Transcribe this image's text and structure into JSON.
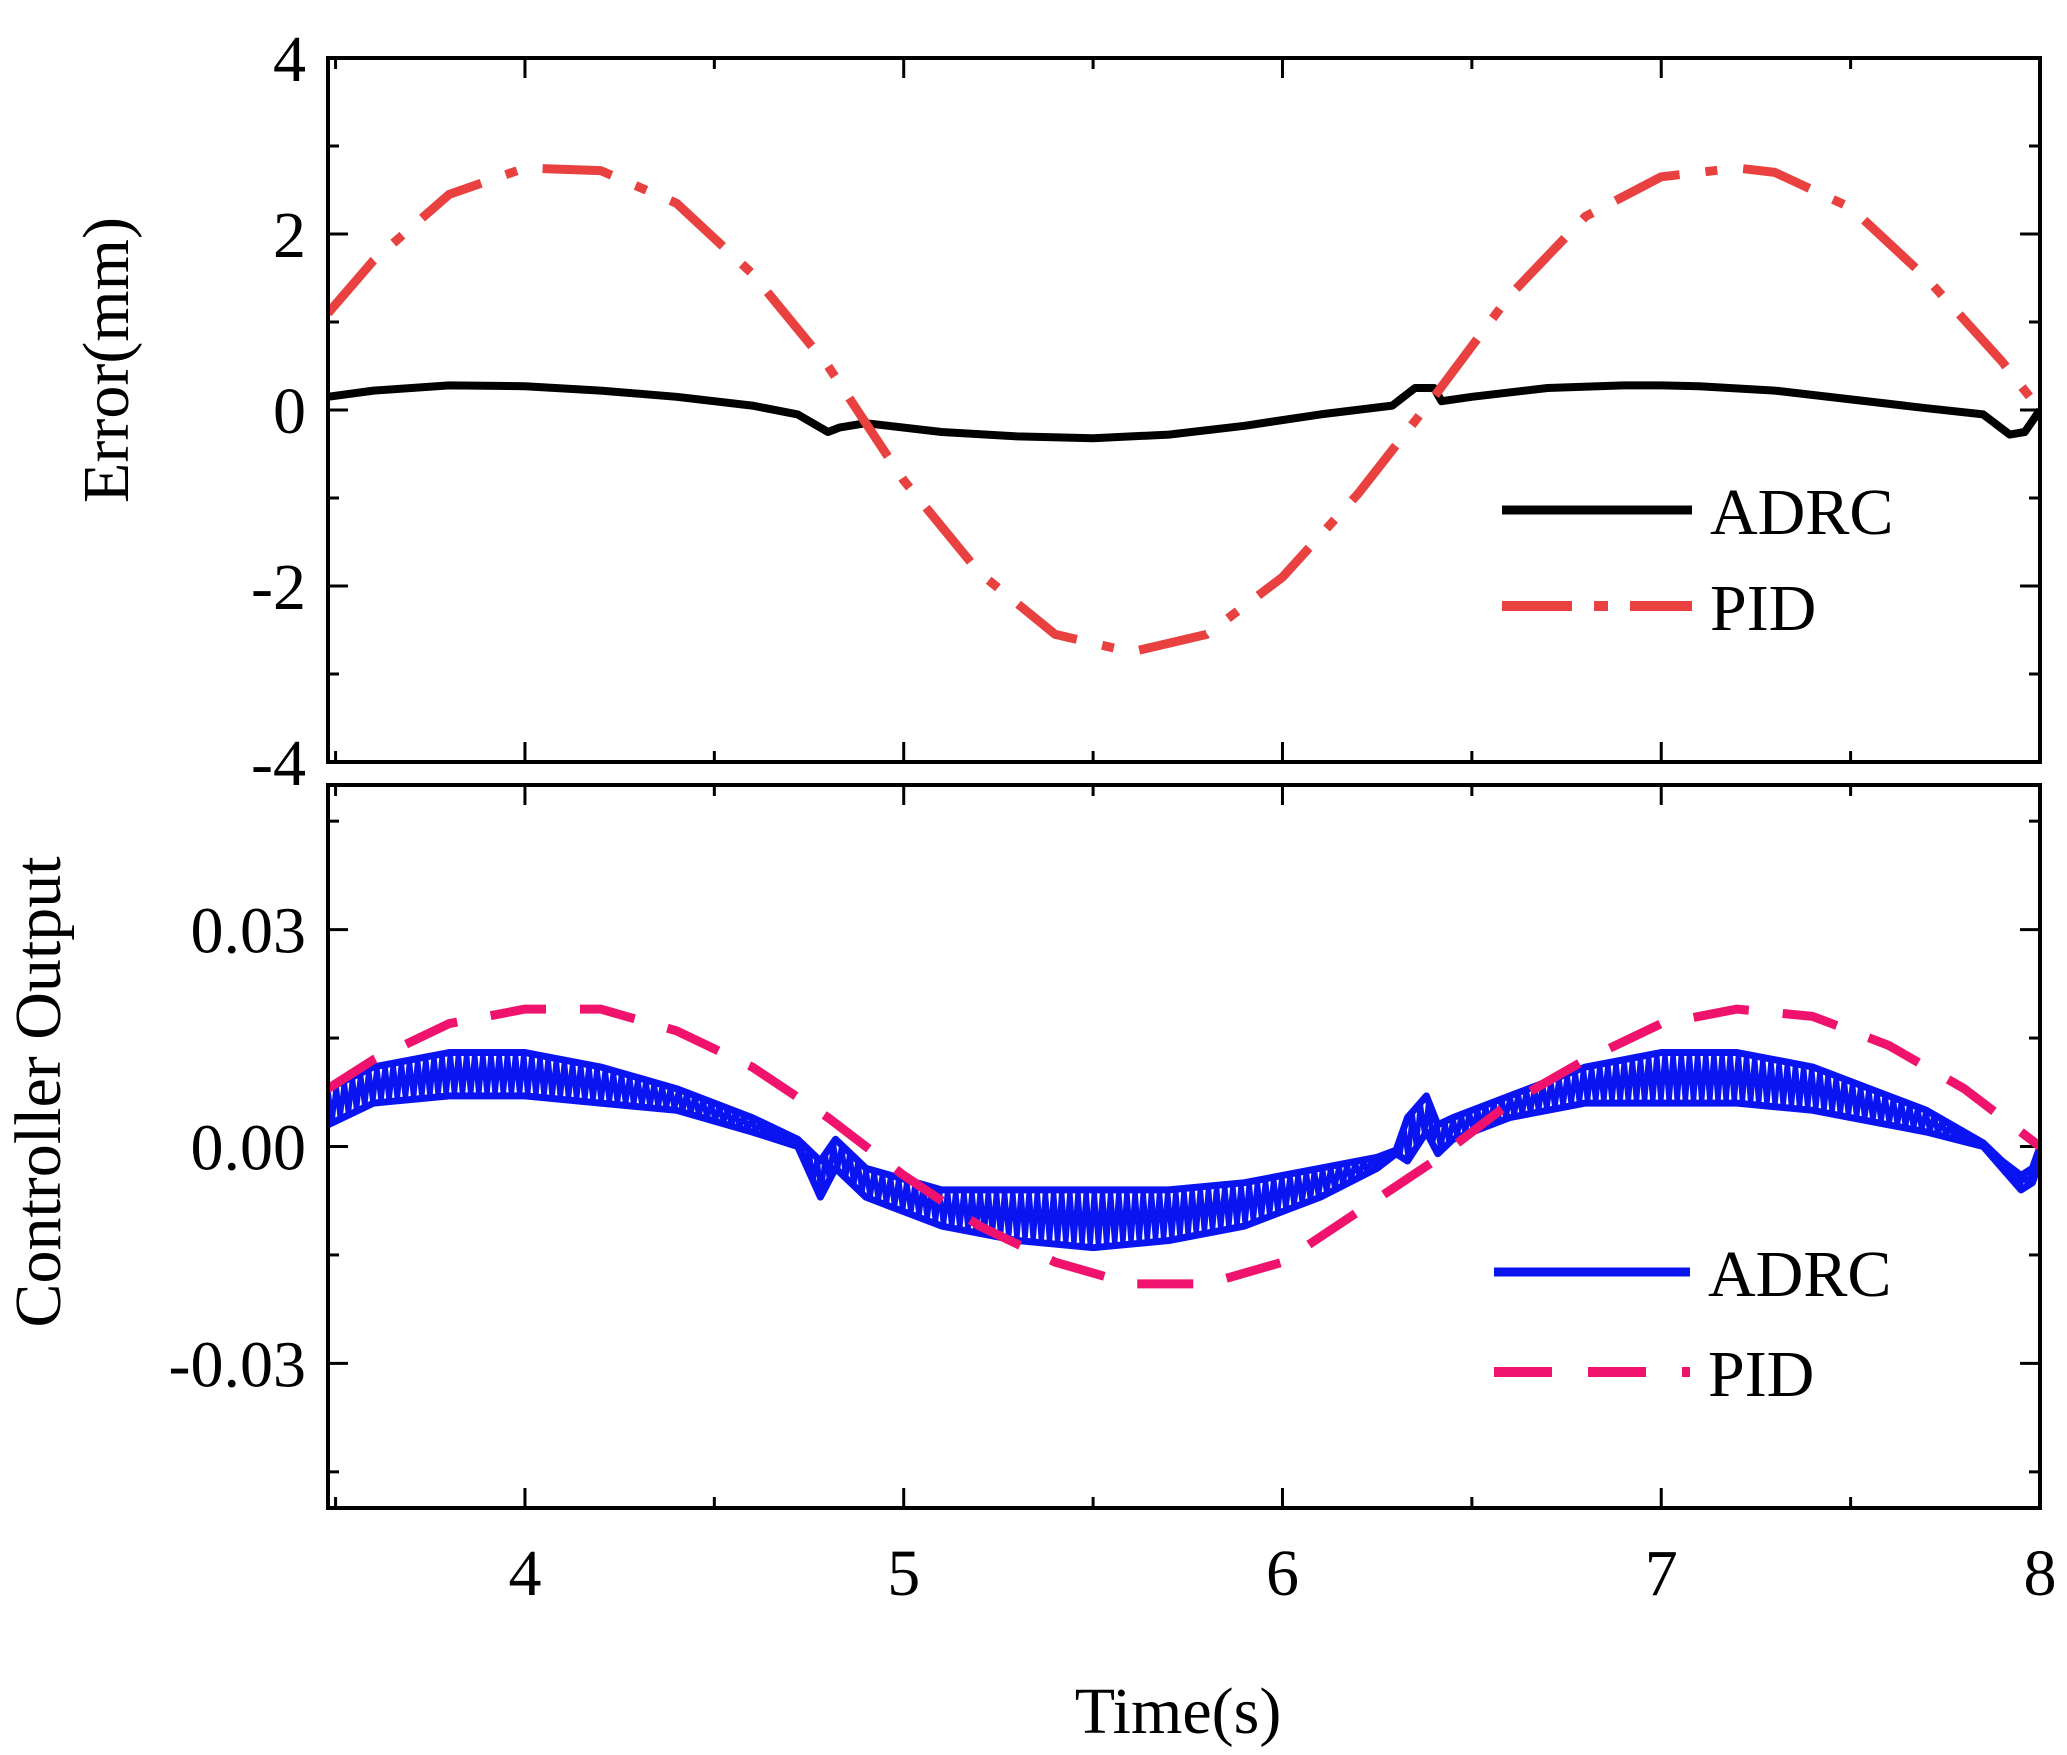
{
  "figure": {
    "xlabel": "Time(s)",
    "xticks": [
      "4",
      "5",
      "6",
      "7",
      "8"
    ]
  },
  "chart_data": [
    {
      "type": "line",
      "title": "",
      "xlabel": "Time(s)",
      "ylabel": "Error(mm)",
      "xlim": [
        3.48,
        8
      ],
      "ylim": [
        -4,
        4
      ],
      "yticks": [
        "4",
        "2",
        "0",
        "-2",
        "-4"
      ],
      "series": [
        {
          "name": "ADRC",
          "color": "#000000",
          "style": "solid",
          "x": [
            3.48,
            3.6,
            3.8,
            4.0,
            4.2,
            4.4,
            4.6,
            4.72,
            4.8,
            4.83,
            4.9,
            5.1,
            5.3,
            5.5,
            5.7,
            5.9,
            6.1,
            6.29,
            6.35,
            6.4,
            6.42,
            6.5,
            6.7,
            6.9,
            7.0,
            7.1,
            7.3,
            7.5,
            7.7,
            7.85,
            7.92,
            7.96,
            8.0
          ],
          "y": [
            0.15,
            0.22,
            0.28,
            0.27,
            0.22,
            0.15,
            0.05,
            -0.05,
            -0.25,
            -0.2,
            -0.15,
            -0.25,
            -0.3,
            -0.32,
            -0.28,
            -0.18,
            -0.05,
            0.05,
            0.25,
            0.25,
            0.1,
            0.15,
            0.25,
            0.28,
            0.28,
            0.27,
            0.22,
            0.12,
            0.02,
            -0.05,
            -0.28,
            -0.25,
            0.0
          ]
        },
        {
          "name": "PID",
          "color": "#e8413f",
          "style": "dashdot",
          "x": [
            3.48,
            3.6,
            3.8,
            4.0,
            4.2,
            4.4,
            4.6,
            4.8,
            5.0,
            5.2,
            5.4,
            5.6,
            5.8,
            6.0,
            6.2,
            6.4,
            6.6,
            6.8,
            7.0,
            7.2,
            7.3,
            7.5,
            7.7,
            7.9,
            8.0
          ],
          "y": [
            1.1,
            1.7,
            2.45,
            2.75,
            2.72,
            2.35,
            1.55,
            0.5,
            -0.8,
            -1.85,
            -2.55,
            -2.75,
            -2.55,
            -1.9,
            -0.95,
            0.15,
            1.3,
            2.2,
            2.65,
            2.75,
            2.7,
            2.3,
            1.5,
            0.55,
            0.0
          ]
        }
      ],
      "legend": {
        "position": "bottom-right",
        "entries": [
          "ADRC",
          "PID"
        ]
      }
    },
    {
      "type": "line",
      "title": "",
      "xlabel": "Time(s)",
      "ylabel": "Controller Output",
      "xlim": [
        3.48,
        8
      ],
      "ylim": [
        -0.05,
        0.05
      ],
      "yticks": [
        "0.03",
        "0.00",
        "-0.03"
      ],
      "series": [
        {
          "name": "ADRC",
          "color": "#0a14f0",
          "style": "solid",
          "band": true,
          "x": [
            3.48,
            3.6,
            3.8,
            4.0,
            4.2,
            4.4,
            4.6,
            4.72,
            4.78,
            4.82,
            4.86,
            4.9,
            5.1,
            5.3,
            5.5,
            5.7,
            5.9,
            6.1,
            6.25,
            6.3,
            6.33,
            6.38,
            6.41,
            6.45,
            6.6,
            6.8,
            7.0,
            7.2,
            7.4,
            7.6,
            7.7,
            7.85,
            7.9,
            7.95,
            7.98,
            8.0
          ],
          "y_upper": [
            0.008,
            0.011,
            0.013,
            0.013,
            0.011,
            0.008,
            0.004,
            0.001,
            -0.002,
            0.001,
            -0.001,
            -0.003,
            -0.006,
            -0.006,
            -0.006,
            -0.006,
            -0.005,
            -0.003,
            -0.0015,
            -0.0005,
            0.004,
            0.007,
            0.003,
            0.004,
            0.007,
            0.011,
            0.013,
            0.013,
            0.011,
            0.007,
            0.005,
            0.0005,
            -0.002,
            -0.004,
            -0.003,
            0.0
          ],
          "y_lower": [
            0.003,
            0.006,
            0.007,
            0.007,
            0.006,
            0.005,
            0.002,
            0.0,
            -0.007,
            -0.003,
            -0.005,
            -0.007,
            -0.011,
            -0.013,
            -0.014,
            -0.013,
            -0.011,
            -0.007,
            -0.003,
            -0.001,
            -0.002,
            0.002,
            -0.001,
            0.001,
            0.004,
            0.006,
            0.006,
            0.006,
            0.005,
            0.003,
            0.002,
            0.0,
            -0.003,
            -0.006,
            -0.005,
            -0.002
          ]
        },
        {
          "name": "PID",
          "color": "#f0136e",
          "style": "dashed",
          "x": [
            3.48,
            3.6,
            3.8,
            4.0,
            4.2,
            4.4,
            4.6,
            4.8,
            5.0,
            5.2,
            5.4,
            5.6,
            5.8,
            6.0,
            6.2,
            6.4,
            6.6,
            6.8,
            7.0,
            7.2,
            7.4,
            7.6,
            7.8,
            8.0
          ],
          "y": [
            0.008,
            0.012,
            0.017,
            0.019,
            0.019,
            0.016,
            0.011,
            0.004,
            -0.004,
            -0.011,
            -0.016,
            -0.019,
            -0.019,
            -0.016,
            -0.009,
            -0.002,
            0.006,
            0.012,
            0.017,
            0.019,
            0.018,
            0.014,
            0.008,
            0.0
          ]
        }
      ],
      "legend": {
        "position": "bottom-right",
        "entries": [
          "ADRC",
          "PID"
        ]
      }
    }
  ]
}
